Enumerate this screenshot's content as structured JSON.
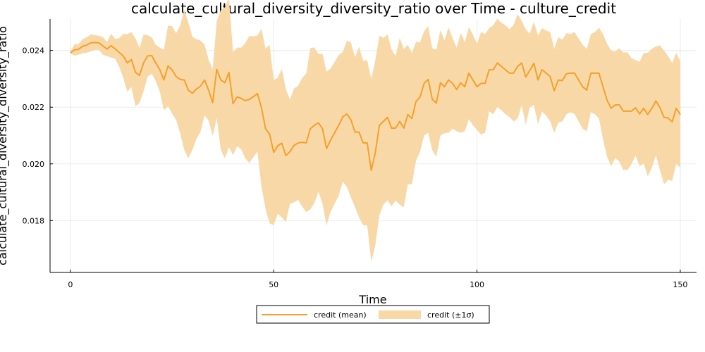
{
  "chart_data": {
    "type": "line",
    "title": "calculate_cultural_diversity_diversity_ratio over Time - culture_credit",
    "xlabel": "Time",
    "ylabel": "calculate_cultural_diversity_diversity_ratio",
    "xlim": [
      -5,
      154
    ],
    "ylim": [
      0.01617,
      0.02511
    ],
    "xticks": [
      0,
      50,
      100,
      150
    ],
    "yticks": [
      0.018,
      0.02,
      0.022,
      0.024
    ],
    "xtick_labels": [
      "0",
      "50",
      "100",
      "150"
    ],
    "ytick_labels": [
      "0.018",
      "0.020",
      "0.022",
      "0.024"
    ],
    "grid": true,
    "legend_position": "bottom-center",
    "colors": {
      "line": "#f5a12a",
      "band": "#f9d8a8"
    },
    "series": [
      {
        "name": "credit (mean)",
        "legend": "credit (mean)",
        "x": [
          0,
          1,
          2,
          3,
          4,
          5,
          6,
          7,
          8,
          9,
          10,
          11,
          12,
          13,
          14,
          15,
          16,
          17,
          18,
          19,
          20,
          21,
          22,
          23,
          24,
          25,
          26,
          27,
          28,
          29,
          30,
          31,
          32,
          33,
          34,
          35,
          36,
          37,
          38,
          39,
          40,
          41,
          42,
          43,
          44,
          45,
          46,
          47,
          48,
          49,
          50,
          51,
          52,
          53,
          54,
          55,
          56,
          57,
          58,
          59,
          60,
          61,
          62,
          63,
          64,
          65,
          66,
          67,
          68,
          69,
          70,
          71,
          72,
          73,
          74,
          75,
          76,
          77,
          78,
          79,
          80,
          81,
          82,
          83,
          84,
          85,
          86,
          87,
          88,
          89,
          90,
          91,
          92,
          93,
          94,
          95,
          96,
          97,
          98,
          99,
          100,
          101,
          102,
          103,
          104,
          105,
          106,
          107,
          108,
          109,
          110,
          111,
          112,
          113,
          114,
          115,
          116,
          117,
          118,
          119,
          120,
          121,
          122,
          123,
          124,
          125,
          126,
          127,
          128,
          129,
          130,
          131,
          132,
          133,
          134,
          135,
          136,
          137,
          138,
          139,
          140,
          141,
          142,
          143,
          144,
          145,
          146,
          147,
          148,
          149,
          150
        ],
        "y": [
          0.02392,
          0.02402,
          0.02404,
          0.02415,
          0.02419,
          0.02427,
          0.02428,
          0.02427,
          0.02416,
          0.02405,
          0.02417,
          0.02406,
          0.02393,
          0.02381,
          0.02356,
          0.02368,
          0.02323,
          0.02312,
          0.02356,
          0.02381,
          0.02382,
          0.02356,
          0.02332,
          0.02296,
          0.02345,
          0.02332,
          0.02308,
          0.02298,
          0.02296,
          0.0226,
          0.02249,
          0.02264,
          0.02274,
          0.02296,
          0.0226,
          0.02216,
          0.02333,
          0.02296,
          0.02286,
          0.02323,
          0.02212,
          0.02236,
          0.02231,
          0.02223,
          0.02227,
          0.02237,
          0.02248,
          0.02198,
          0.02124,
          0.02105,
          0.0204,
          0.02064,
          0.02073,
          0.02029,
          0.02043,
          0.02065,
          0.02074,
          0.02076,
          0.02074,
          0.02124,
          0.02136,
          0.02145,
          0.02124,
          0.02054,
          0.02084,
          0.0211,
          0.02136,
          0.02166,
          0.02176,
          0.02155,
          0.02112,
          0.02112,
          0.02074,
          0.02074,
          0.01977,
          0.0204,
          0.02136,
          0.0215,
          0.02164,
          0.02126,
          0.02126,
          0.0215,
          0.02126,
          0.02174,
          0.0216,
          0.0222,
          0.02236,
          0.02284,
          0.02298,
          0.02228,
          0.02214,
          0.02286,
          0.02272,
          0.02296,
          0.02284,
          0.02262,
          0.02286,
          0.02272,
          0.0232,
          0.02296,
          0.02272,
          0.02284,
          0.02284,
          0.02332,
          0.02332,
          0.02356,
          0.02344,
          0.02332,
          0.0232,
          0.0232,
          0.02344,
          0.02356,
          0.02306,
          0.0233,
          0.02355,
          0.02296,
          0.02332,
          0.0232,
          0.02308,
          0.02258,
          0.02296,
          0.02294,
          0.02318,
          0.0232,
          0.0232,
          0.02296,
          0.02272,
          0.0226,
          0.0232,
          0.0232,
          0.0232,
          0.02272,
          0.02224,
          0.02196,
          0.02208,
          0.02208,
          0.02186,
          0.02186,
          0.02186,
          0.02198,
          0.02176,
          0.02196,
          0.02174,
          0.02196,
          0.02222,
          0.02198,
          0.02164,
          0.02162,
          0.02148,
          0.02196,
          0.02174
        ]
      },
      {
        "name": "credit (±1σ)",
        "legend": "credit (±1σ)",
        "x_ref": "series.0.x",
        "lower": [
          0.02389,
          0.02382,
          0.02385,
          0.0239,
          0.02392,
          0.02397,
          0.02402,
          0.02402,
          0.02385,
          0.0238,
          0.02375,
          0.02371,
          0.02343,
          0.02304,
          0.02254,
          0.02271,
          0.02203,
          0.02215,
          0.02256,
          0.02308,
          0.02318,
          0.02292,
          0.02254,
          0.02189,
          0.02203,
          0.02178,
          0.02155,
          0.02108,
          0.02049,
          0.0202,
          0.02049,
          0.02088,
          0.02113,
          0.02171,
          0.02152,
          0.02098,
          0.02162,
          0.02049,
          0.0202,
          0.02059,
          0.02031,
          0.02062,
          0.02052,
          0.0202,
          0.02003,
          0.02024,
          0.02043,
          0.0192,
          0.01841,
          0.0179,
          0.01784,
          0.01824,
          0.01811,
          0.01795,
          0.01859,
          0.01864,
          0.01873,
          0.01849,
          0.0183,
          0.0184,
          0.01861,
          0.01902,
          0.0186,
          0.01783,
          0.01831,
          0.0186,
          0.01888,
          0.01937,
          0.01918,
          0.01881,
          0.01848,
          0.01811,
          0.01784,
          0.01783,
          0.01654,
          0.01714,
          0.01819,
          0.01856,
          0.01871,
          0.0185,
          0.0187,
          0.01856,
          0.01847,
          0.01928,
          0.01929,
          0.0201,
          0.02043,
          0.021,
          0.0211,
          0.02048,
          0.02025,
          0.021,
          0.02108,
          0.0211,
          0.02124,
          0.02115,
          0.0211,
          0.02115,
          0.02158,
          0.02136,
          0.0212,
          0.02103,
          0.0211,
          0.02185,
          0.02175,
          0.022,
          0.0219,
          0.02175,
          0.02165,
          0.0215,
          0.0216,
          0.02207,
          0.02138,
          0.022,
          0.02208,
          0.0214,
          0.02185,
          0.0217,
          0.0215,
          0.0211,
          0.02145,
          0.0215,
          0.02175,
          0.02182,
          0.02175,
          0.0215,
          0.02124,
          0.02115,
          0.02182,
          0.02175,
          0.0216,
          0.02086,
          0.02025,
          0.01992,
          0.0202,
          0.02008,
          0.01979,
          0.01978,
          0.01999,
          0.0203,
          0.01992,
          0.02001,
          0.01956,
          0.01986,
          0.0203,
          0.01978,
          0.01928,
          0.01944,
          0.0194,
          0.02,
          0.01986
        ],
        "upper": [
          0.02395,
          0.02422,
          0.02423,
          0.0244,
          0.02446,
          0.02457,
          0.02454,
          0.02452,
          0.02447,
          0.0243,
          0.02459,
          0.02441,
          0.02443,
          0.02458,
          0.02458,
          0.02465,
          0.02443,
          0.02409,
          0.02456,
          0.02454,
          0.02446,
          0.0242,
          0.0241,
          0.02403,
          0.02487,
          0.02486,
          0.02461,
          0.02488,
          0.02543,
          0.025,
          0.02449,
          0.0244,
          0.02435,
          0.02421,
          0.02368,
          0.02334,
          0.02504,
          0.02543,
          0.02552,
          0.02587,
          0.02393,
          0.0241,
          0.0241,
          0.02426,
          0.02451,
          0.0245,
          0.02453,
          0.02476,
          0.02407,
          0.0242,
          0.02296,
          0.02304,
          0.02335,
          0.02263,
          0.02227,
          0.02266,
          0.02275,
          0.02303,
          0.02318,
          0.02408,
          0.02411,
          0.02388,
          0.02388,
          0.02325,
          0.02337,
          0.0236,
          0.02384,
          0.02395,
          0.02434,
          0.02429,
          0.02376,
          0.02413,
          0.02364,
          0.02365,
          0.023,
          0.02366,
          0.02453,
          0.02444,
          0.02457,
          0.02402,
          0.02382,
          0.02444,
          0.02405,
          0.0242,
          0.02391,
          0.0243,
          0.02429,
          0.02468,
          0.02486,
          0.02408,
          0.02403,
          0.02472,
          0.02436,
          0.02482,
          0.02444,
          0.02409,
          0.02462,
          0.02429,
          0.02482,
          0.02456,
          0.02424,
          0.02465,
          0.02458,
          0.02479,
          0.02489,
          0.02512,
          0.02498,
          0.02489,
          0.02475,
          0.0249,
          0.02528,
          0.02505,
          0.02474,
          0.0246,
          0.02502,
          0.02452,
          0.02479,
          0.0247,
          0.02466,
          0.02406,
          0.02447,
          0.02438,
          0.02461,
          0.02458,
          0.02465,
          0.02442,
          0.0242,
          0.02405,
          0.02458,
          0.02465,
          0.0248,
          0.02458,
          0.02423,
          0.024,
          0.02396,
          0.02408,
          0.02393,
          0.02394,
          0.02373,
          0.02366,
          0.0236,
          0.02391,
          0.02392,
          0.02406,
          0.02414,
          0.02418,
          0.024,
          0.0238,
          0.02356,
          0.02392,
          0.02362
        ]
      }
    ]
  }
}
